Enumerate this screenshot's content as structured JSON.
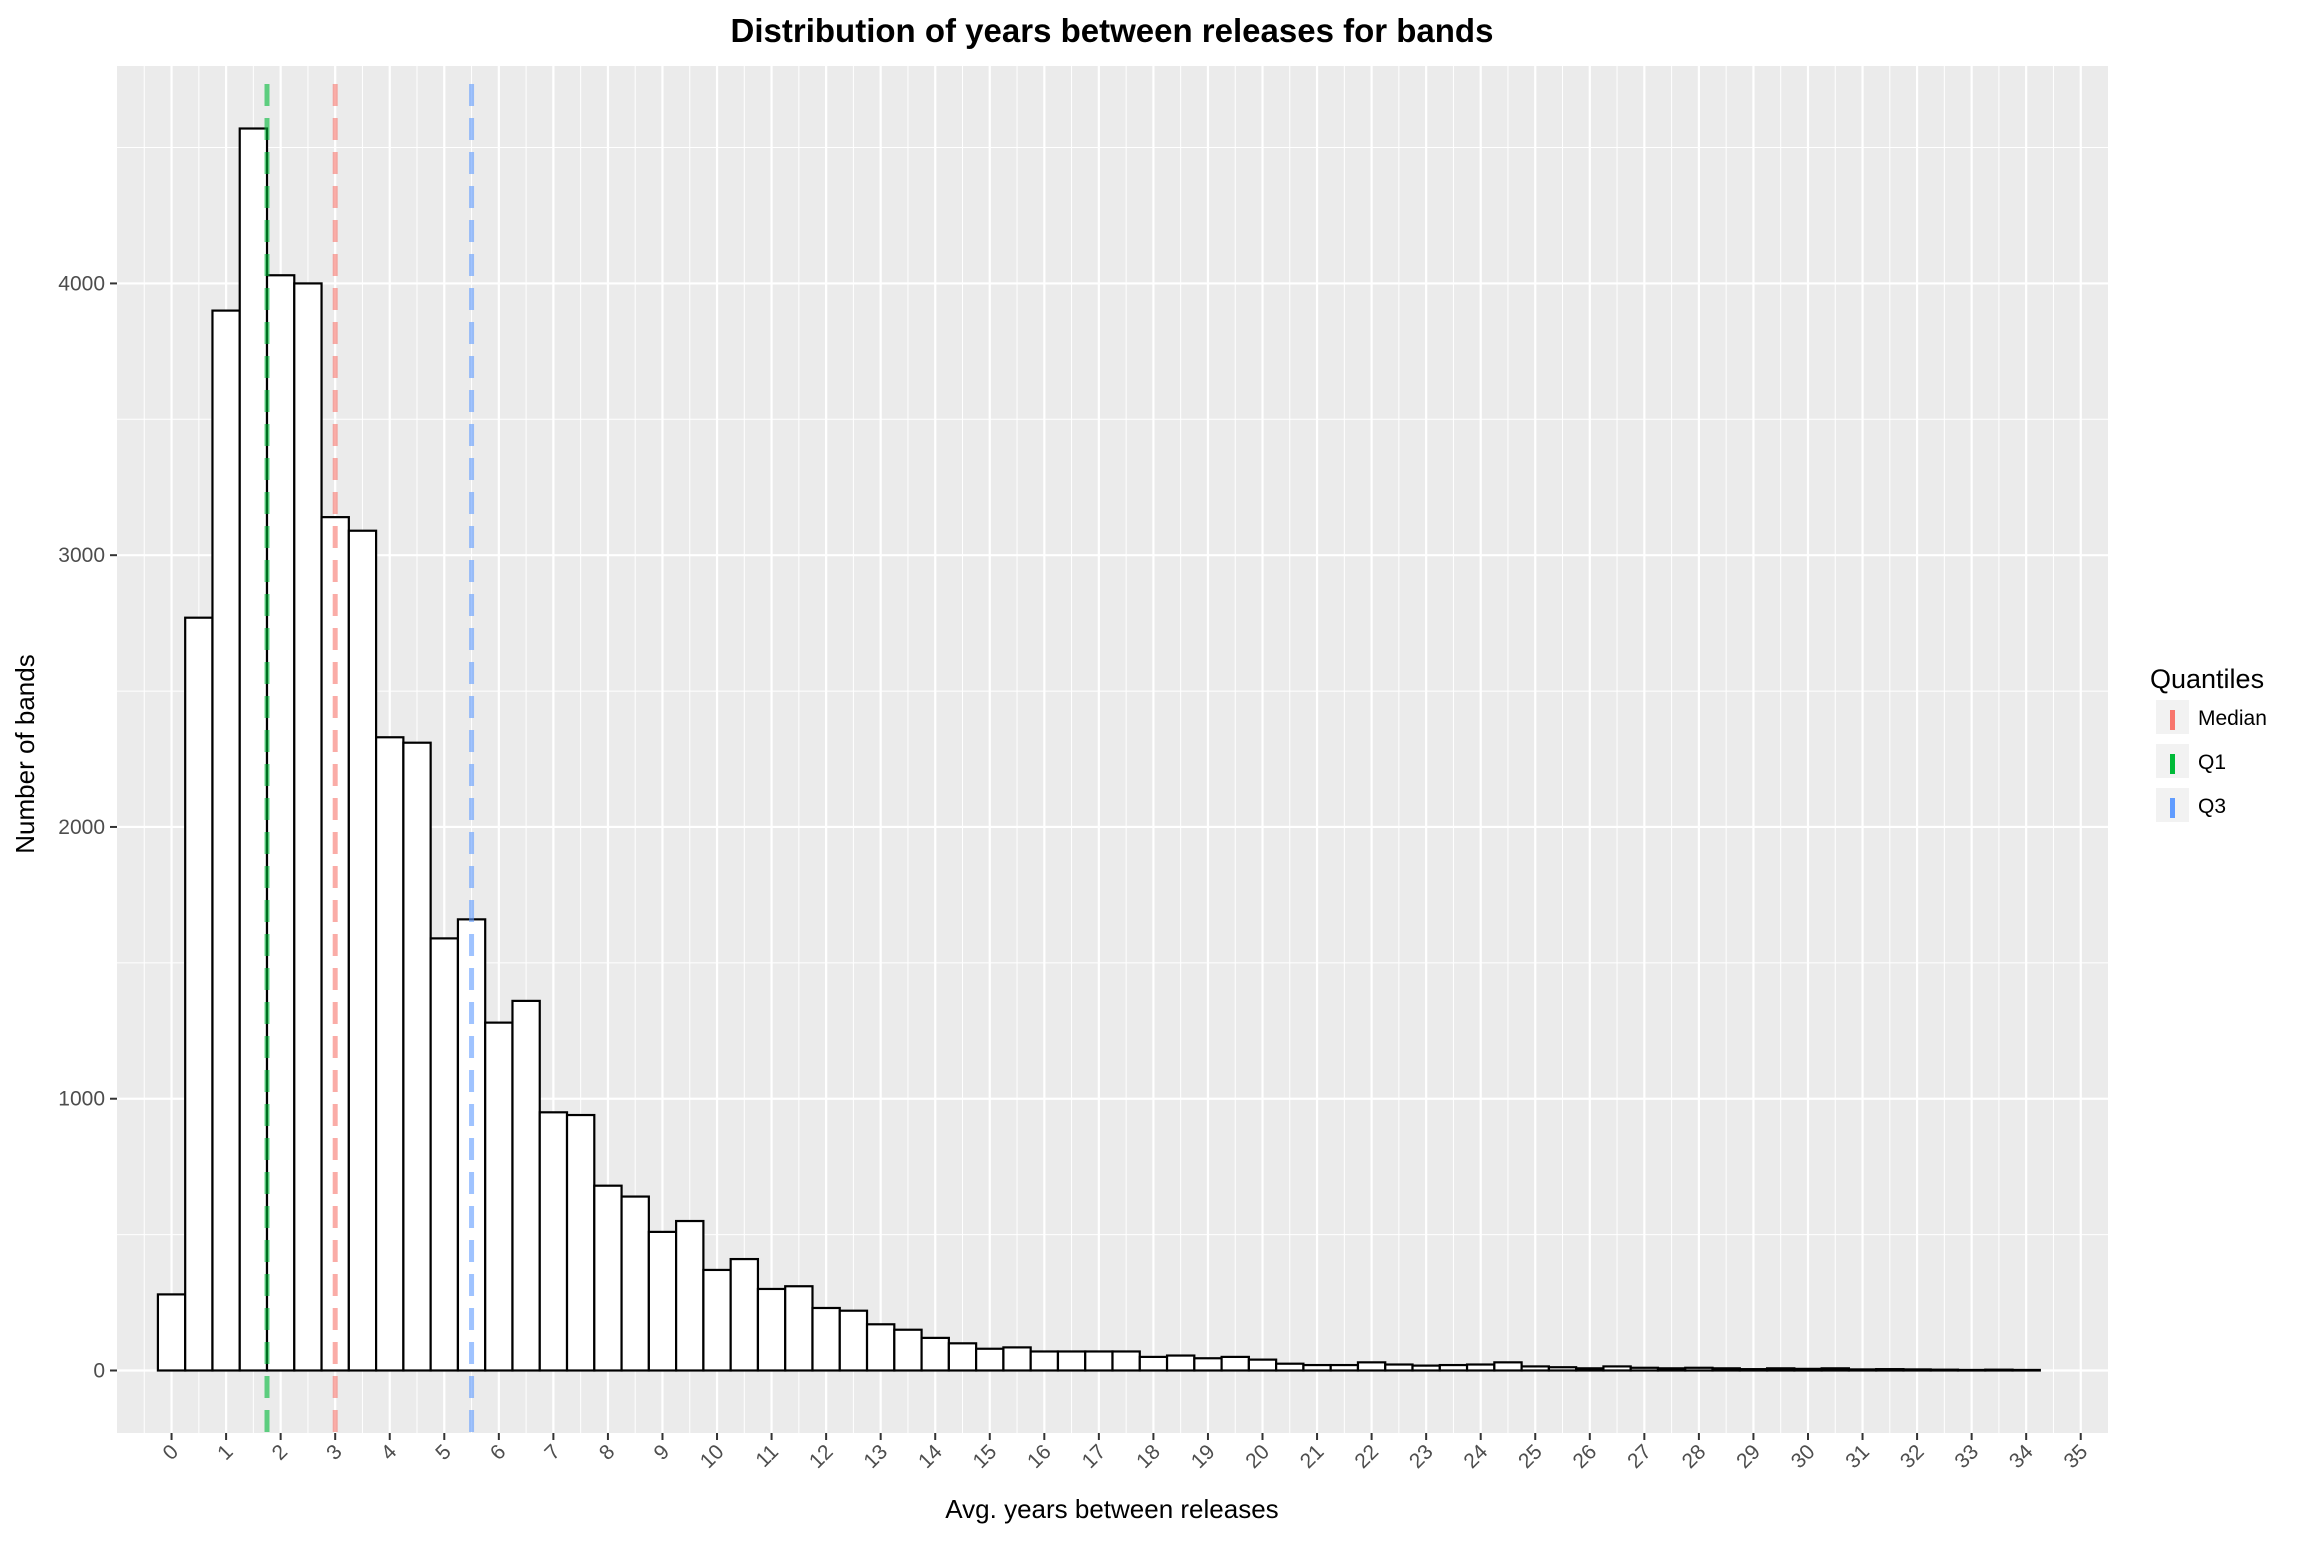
{
  "chart_data": {
    "type": "bar",
    "title": "Distribution of years between releases for bands",
    "xlabel": "Avg. years between releases",
    "ylabel": "Number of bands",
    "bin_width": 0.5,
    "x_start": -0.25,
    "xlim": [
      -1,
      35.5
    ],
    "ylim": [
      -230,
      4800
    ],
    "x_ticks": [
      0,
      1,
      2,
      3,
      4,
      5,
      6,
      7,
      8,
      9,
      10,
      11,
      12,
      13,
      14,
      15,
      16,
      17,
      18,
      19,
      20,
      21,
      22,
      23,
      24,
      25,
      26,
      27,
      28,
      29,
      30,
      31,
      32,
      33,
      34,
      35
    ],
    "y_ticks": [
      0,
      1000,
      2000,
      3000,
      4000
    ],
    "grid": true,
    "values": [
      280,
      2770,
      3900,
      4570,
      4030,
      4000,
      3140,
      3090,
      2330,
      2310,
      1590,
      1660,
      1280,
      1360,
      950,
      940,
      680,
      640,
      510,
      550,
      370,
      410,
      300,
      310,
      230,
      220,
      170,
      150,
      120,
      100,
      80,
      85,
      70,
      70,
      70,
      70,
      50,
      55,
      45,
      50,
      40,
      25,
      20,
      20,
      30,
      22,
      18,
      20,
      22,
      30,
      15,
      12,
      8,
      15,
      10,
      8,
      10,
      8,
      5,
      8,
      6,
      8,
      4,
      5,
      4,
      3,
      2,
      3,
      2
    ],
    "quantiles": [
      {
        "name": "Q1",
        "x": 1.75,
        "color": "#00BA38"
      },
      {
        "name": "Median",
        "x": 3.0,
        "color": "#F8766D"
      },
      {
        "name": "Q3",
        "x": 5.5,
        "color": "#619CFF"
      }
    ],
    "legend": {
      "title": "Quantiles",
      "position": "right",
      "items": [
        {
          "label": "Median",
          "color": "#F8766D"
        },
        {
          "label": "Q1",
          "color": "#00BA38"
        },
        {
          "label": "Q3",
          "color": "#619CFF"
        }
      ]
    },
    "colors": {
      "panel": "#EBEBEB",
      "grid": "#FFFFFF",
      "bar_fill": "#FFFFFF",
      "bar_stroke": "#000000",
      "axis_text": "#4D4D4D"
    }
  }
}
